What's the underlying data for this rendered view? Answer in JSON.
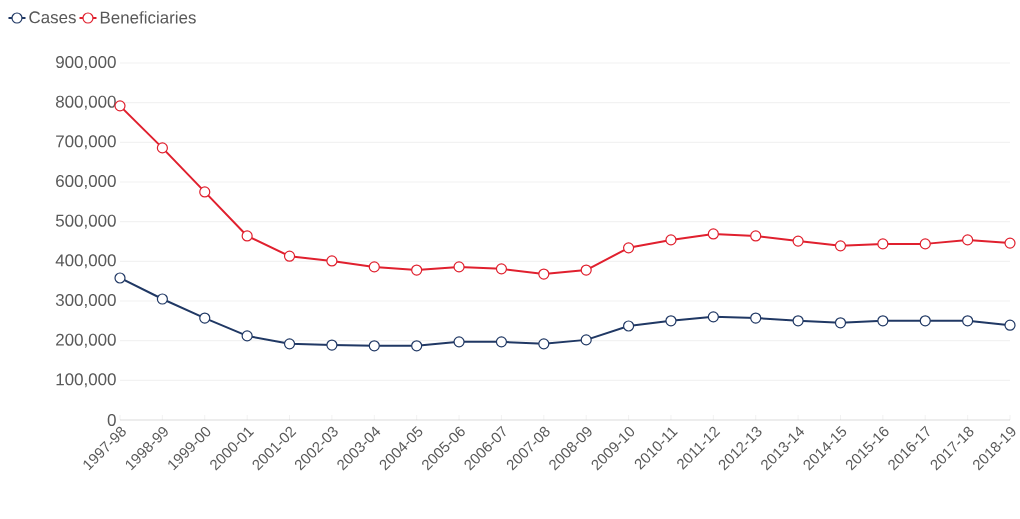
{
  "chart_data": {
    "type": "line",
    "categories": [
      "1997-98",
      "1998-99",
      "1999-00",
      "2000-01",
      "2001-02",
      "2002-03",
      "2003-04",
      "2004-05",
      "2005-06",
      "2006-07",
      "2007-08",
      "2008-09",
      "2009-10",
      "2010-11",
      "2011-12",
      "2012-13",
      "2013-14",
      "2014-15",
      "2015-16",
      "2016-17",
      "2017-18",
      "2018-19"
    ],
    "series": [
      {
        "name": "Cases",
        "color": "#203864",
        "values": [
          358000,
          305000,
          257000,
          212000,
          192000,
          189000,
          187000,
          187000,
          197000,
          197000,
          192000,
          202000,
          237000,
          250000,
          260000,
          257000,
          250000,
          245000,
          250000,
          250000,
          250000,
          239000
        ]
      },
      {
        "name": "Beneficiaries",
        "color": "#e0202e",
        "values": [
          792000,
          686000,
          575000,
          464000,
          413000,
          401000,
          386000,
          378000,
          386000,
          381000,
          368000,
          378000,
          434000,
          454000,
          469000,
          464000,
          451000,
          439000,
          444000,
          444000,
          454000,
          446000
        ]
      }
    ],
    "ylim": [
      0,
      900000
    ],
    "yticks": [
      0,
      {
        "value": 100000,
        "label": "100,000"
      },
      {
        "value": 200000,
        "label": "200,000"
      },
      {
        "value": 300000,
        "label": "300,000"
      },
      {
        "value": 400000,
        "label": "400,000"
      },
      {
        "value": 500000,
        "label": "500,000"
      },
      {
        "value": 600000,
        "label": "600,000"
      },
      {
        "value": 700000,
        "label": "700,000"
      },
      {
        "value": 800000,
        "label": "800,000"
      },
      {
        "value": 900000,
        "label": "900,000"
      }
    ],
    "grid": "y",
    "legend": "top left",
    "marker": "circle",
    "line_style": "solid"
  }
}
